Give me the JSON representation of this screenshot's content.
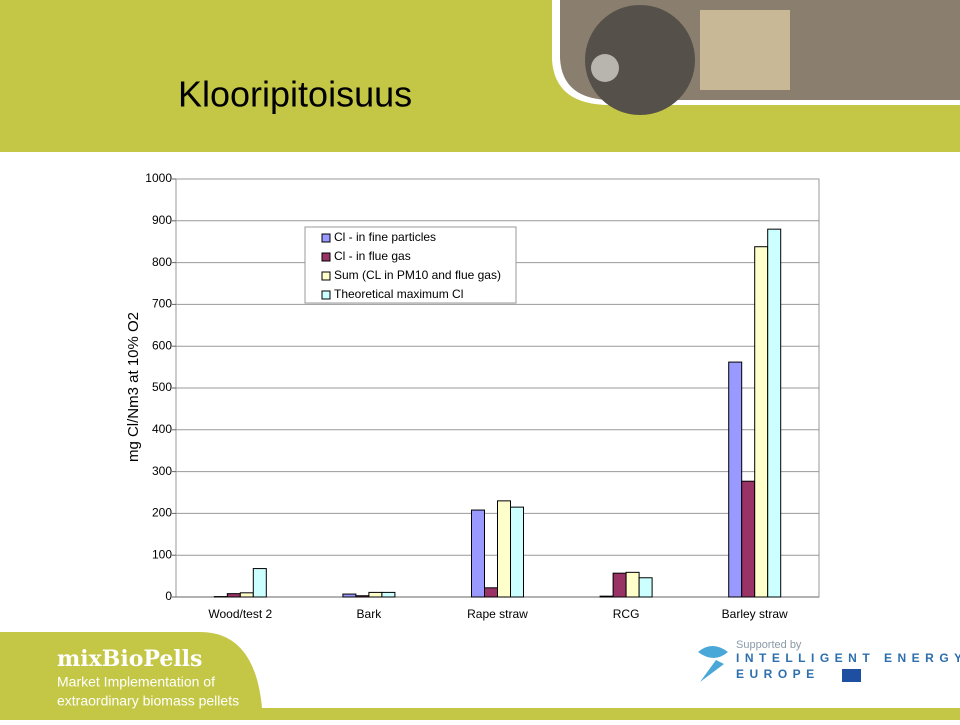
{
  "chart_data": {
    "type": "bar",
    "title": "Klooripitoisuus",
    "y_label": "mg Cl/Nm3 at 10% O2",
    "categories": [
      "Wood/test 2",
      "Bark",
      "Rape straw",
      "RCG",
      "Barley straw"
    ],
    "series": [
      {
        "name": "Cl - in fine particles",
        "color": "#9999ff",
        "values": [
          1,
          7,
          208,
          2,
          562
        ]
      },
      {
        "name": "Cl - in flue gas",
        "color": "#993366",
        "values": [
          8,
          3,
          22,
          57,
          277
        ]
      },
      {
        "name": "Sum (CL in PM10 and flue gas)",
        "color": "#ffffcc",
        "values": [
          10,
          11,
          230,
          59,
          838
        ]
      },
      {
        "name": "Theoretical maximum Cl",
        "color": "#ccffff",
        "values": [
          68,
          11,
          215,
          46,
          880
        ]
      }
    ],
    "ylim": [
      0,
      1000
    ],
    "yticks": [
      0,
      100,
      200,
      300,
      400,
      500,
      600,
      700,
      800,
      900,
      1000
    ],
    "grid": true,
    "legend": "top-left"
  },
  "footer": {
    "brand": "mixBioPells",
    "tagline": [
      "Market Implementation of",
      "extraordinary biomass pellets"
    ],
    "support": "Supported by",
    "program": [
      "INTELLIGENT ENERGY",
      "EUROPE"
    ]
  }
}
